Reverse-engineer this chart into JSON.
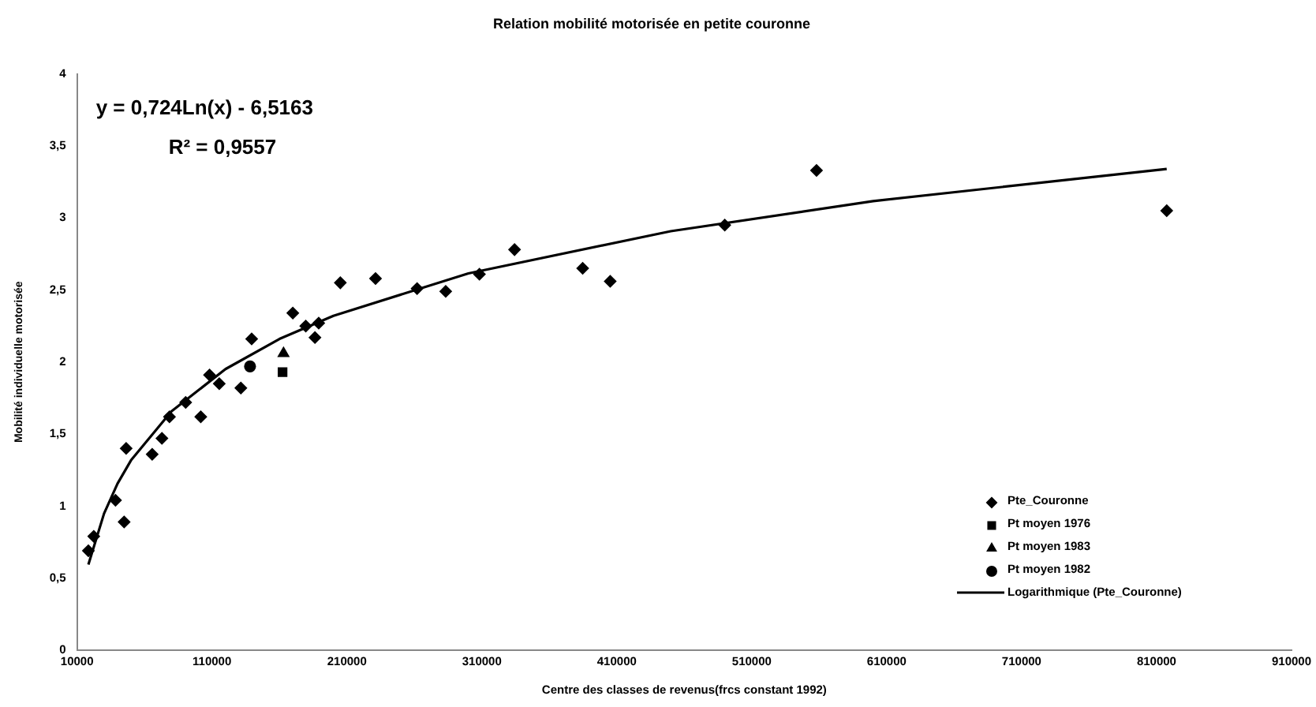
{
  "chart_data": {
    "type": "scatter",
    "title": "Relation mobilité motorisée en petite couronne",
    "xlabel": "Centre des classes de revenus(frcs constant 1992)",
    "ylabel": "Mobilité individuelle motorisée",
    "annotations": [
      "y = 0,724Ln(x) - 6,5163",
      "R² = 0,9557"
    ],
    "xlim": [
      10000,
      910000
    ],
    "xticks": [
      10000,
      110000,
      210000,
      310000,
      410000,
      510000,
      610000,
      710000,
      810000,
      910000
    ],
    "ylim": [
      0,
      4
    ],
    "yticks": [
      0,
      {
        "value": 0.5,
        "label": "0,5"
      },
      1,
      {
        "value": 1.5,
        "label": "1,5"
      },
      2,
      {
        "value": 2.5,
        "label": "2,5"
      },
      3,
      {
        "value": 3.5,
        "label": "3,5"
      },
      4
    ],
    "grid": false,
    "legend": "bottom right",
    "series": [
      {
        "name": "Pte_Couronne",
        "color": "#000000",
        "marker": "diamond",
        "x": [
          18400,
          22400,
          38500,
          44900,
          46400,
          65700,
          72900,
          78500,
          90500,
          101700,
          108200,
          115400,
          131400,
          139400,
          169900,
          179500,
          186300,
          189100,
          205100,
          231200,
          262000,
          283200,
          308200,
          334200,
          384700,
          405100,
          490000,
          558000,
          817500
        ],
        "values": [
          0.69,
          0.79,
          1.04,
          0.89,
          1.4,
          1.36,
          1.47,
          1.62,
          1.72,
          1.62,
          1.91,
          1.85,
          1.82,
          2.16,
          2.34,
          2.25,
          2.17,
          2.27,
          2.55,
          2.58,
          2.51,
          2.49,
          2.61,
          2.78,
          2.65,
          2.56,
          2.95,
          3.33,
          3.05
        ]
      },
      {
        "name": "Pt moyen 1976",
        "color": "#000000",
        "marker": "square",
        "x": [
          162300
        ],
        "values": [
          1.93
        ]
      },
      {
        "name": "Pt moyen 1983",
        "color": "#000000",
        "marker": "triangle",
        "x": [
          163000
        ],
        "values": [
          2.06
        ]
      },
      {
        "name": "Pt moyen 1982",
        "color": "#000000",
        "marker": "circle",
        "x": [
          138200
        ],
        "values": [
          1.97
        ]
      },
      {
        "name": "Logarithmique (Pte_Couronne)",
        "type": "line",
        "color": "#000000",
        "marker": "none",
        "line_style": "solid",
        "x": [
          18400,
          30000,
          40000,
          50000,
          80000,
          120000,
          160000,
          200000,
          300000,
          450000,
          600000,
          817500
        ],
        "values": [
          0.594,
          0.948,
          1.156,
          1.318,
          1.658,
          1.951,
          2.16,
          2.321,
          2.615,
          2.908,
          3.117,
          3.34
        ]
      }
    ]
  }
}
